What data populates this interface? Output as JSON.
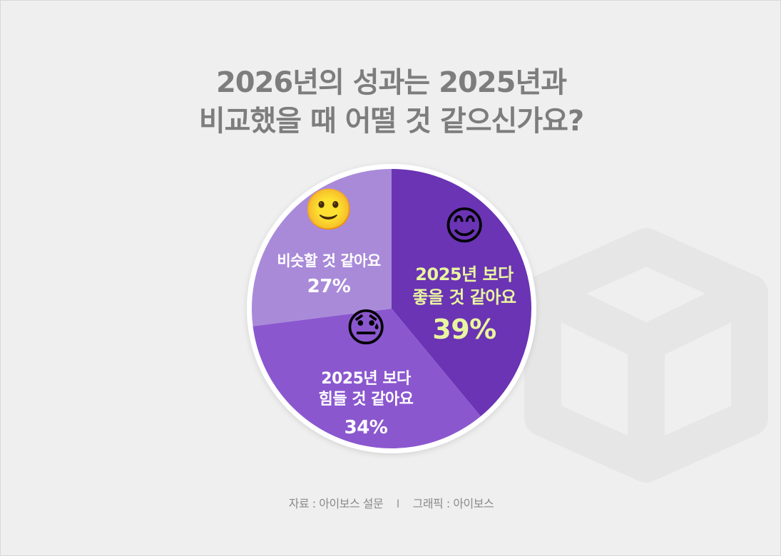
{
  "title": {
    "line1": "2026년의 성과는 2025년과",
    "line2": "비교했을 때 어떨 것 같으신가요?"
  },
  "chart_data": {
    "type": "pie",
    "slices": [
      {
        "label_line1": "2025년 보다",
        "label_line2": "좋을 것 같아요",
        "percent_label": "39%",
        "value": 39,
        "color": "#6a34b4",
        "text_color": "#e9f5a0",
        "emoji": "😊",
        "icon_name": "smiling-face-icon"
      },
      {
        "label_line1": "2025년 보다",
        "label_line2": "힘들 것 같아요",
        "percent_label": "34%",
        "value": 34,
        "color": "#8b57cf",
        "text_color": "#ffffff",
        "emoji": "😓",
        "icon_name": "downcast-sweat-face-icon"
      },
      {
        "label_line1": "비슷할 것 같아요",
        "label_line2": "",
        "percent_label": "27%",
        "value": 27,
        "color": "#a98ad9",
        "text_color": "#ffffff",
        "emoji": "🙂",
        "icon_name": "slightly-smiling-face-icon"
      }
    ]
  },
  "footer": {
    "source": "자료 : 아이보스 설문",
    "separator": "I",
    "graphic": "그래픽 : 아이보스"
  }
}
